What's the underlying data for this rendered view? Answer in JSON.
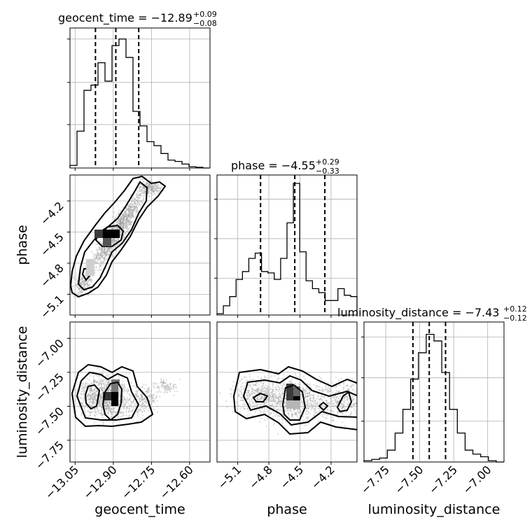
{
  "chart_data": {
    "type": "corner",
    "parameters": [
      {
        "name": "geocent_time",
        "axis_label": "geocent_time",
        "title": {
          "main": "geocent_time = −12.89",
          "sup": "+0.09",
          "sub": "−0.08"
        },
        "range": [
          -13.07,
          -12.52
        ],
        "median": -12.89,
        "lower": -12.97,
        "upper": -12.8,
        "tick_values": [
          -13.05,
          -12.9,
          -12.75,
          -12.6
        ],
        "tick_labels": [
          "−13.05",
          "−12.90",
          "−12.75",
          "−12.60"
        ],
        "hist": [
          0.02,
          0.28,
          0.59,
          0.63,
          0.8,
          0.66,
          0.93,
          0.98,
          0.84,
          0.43,
          0.32,
          0.2,
          0.17,
          0.11,
          0.06,
          0.05,
          0.03,
          0.01,
          0.005,
          0.0
        ],
        "hist_yticks": [
          0.33,
          0.65,
          0.98
        ]
      },
      {
        "name": "phase",
        "axis_label": "phase",
        "title": {
          "main": "phase = −4.55",
          "sup": "+0.29",
          "sub": "−0.33"
        },
        "range": [
          -5.3,
          -3.95
        ],
        "median": -4.55,
        "lower": -4.88,
        "upper": -4.26,
        "tick_values": [
          -5.1,
          -4.8,
          -4.5,
          -4.2
        ],
        "tick_labels": [
          "−5.1",
          "−4.8",
          "−4.5",
          "−4.2"
        ],
        "hist": [
          0.01,
          0.07,
          0.14,
          0.27,
          0.33,
          0.43,
          0.47,
          0.33,
          0.32,
          0.27,
          0.43,
          0.7,
          1.0,
          0.48,
          0.26,
          0.2,
          0.17,
          0.11,
          0.11,
          0.2,
          0.15,
          0.14
        ],
        "hist_yticks": [
          0.28,
          0.58,
          0.88
        ]
      },
      {
        "name": "luminosity_distance",
        "axis_label": "luminosity_distance",
        "title": {
          "main": "luminosity_distance = −7.43",
          "sup": "+0.12",
          "sub": "−0.12"
        },
        "range": [
          -7.91,
          -6.88
        ],
        "median": -7.43,
        "lower": -7.55,
        "upper": -7.31,
        "tick_values": [
          -7.75,
          -7.5,
          -7.25,
          -7.0
        ],
        "tick_labels": [
          "−7.75",
          "−7.50",
          "−7.25",
          "−7.00"
        ],
        "hist": [
          0.01,
          0.02,
          0.03,
          0.09,
          0.22,
          0.4,
          0.63,
          0.83,
          0.97,
          0.92,
          0.68,
          0.4,
          0.22,
          0.09,
          0.06,
          0.04,
          0.01,
          0.0
        ],
        "hist_yticks": [
          0.31,
          0.64,
          0.95
        ]
      }
    ],
    "pair_plots": [
      {
        "x": "geocent_time",
        "y": "phase",
        "y_tick_values": [
          -5.1,
          -4.8,
          -4.5,
          -4.2
        ],
        "y_tick_labels": [
          "−5.1",
          "−4.8",
          "−4.5",
          "−4.2"
        ]
      },
      {
        "x": "geocent_time",
        "y": "luminosity_distance",
        "y_tick_values": [
          -7.0,
          -7.25,
          -7.5,
          -7.75
        ],
        "y_tick_labels": [
          "−7.00",
          "−7.25",
          "−7.50",
          "−7.75"
        ]
      },
      {
        "x": "phase",
        "y": "luminosity_distance"
      }
    ],
    "grid": true,
    "colors": {
      "line": "#000000",
      "scatter": "#9a9a9a",
      "grid": "#b0b0b0"
    }
  }
}
